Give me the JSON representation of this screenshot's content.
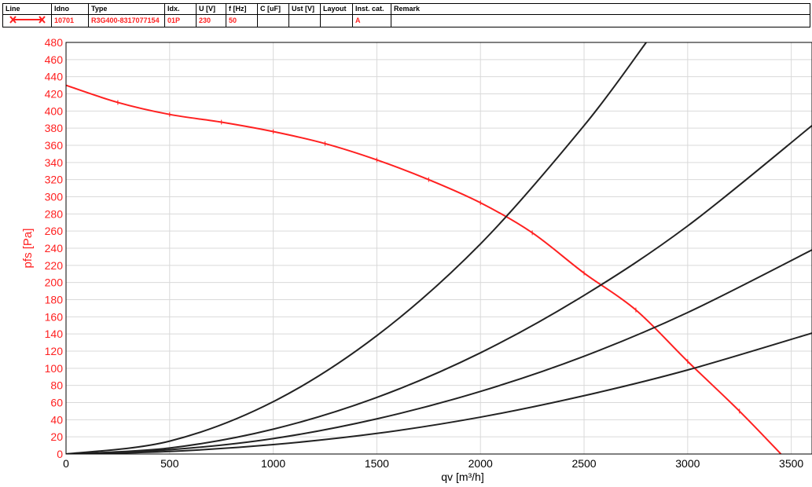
{
  "legend_table": {
    "headers": [
      "Line",
      "Idno",
      "Type",
      "Idx.",
      "U [V]",
      "f [Hz]",
      "C [uF]",
      "Ust [V]",
      "Layout",
      "Inst. cat.",
      "Remark"
    ],
    "row": {
      "idno": "10701",
      "type": "R3G400-8317077154",
      "idx": "01P",
      "u": "230",
      "f": "50",
      "c": "",
      "ust": "",
      "layout": "",
      "inst_cat": "A",
      "remark": ""
    }
  },
  "colors": {
    "fan_curve": "#ff2020",
    "system_curves": "#222222",
    "grid": "#d9d9d9",
    "axis_text_y": "#ff2020",
    "axis_text_x": "#000000"
  },
  "chart_data": {
    "type": "line",
    "xlabel": "qv [m³/h]",
    "ylabel": "pfs [Pa]",
    "xlim": [
      0,
      3600
    ],
    "ylim": [
      0,
      480
    ],
    "xticks": [
      0,
      500,
      1000,
      1500,
      2000,
      2500,
      3000,
      3500
    ],
    "yticks": [
      0,
      20,
      40,
      60,
      80,
      100,
      120,
      140,
      160,
      180,
      200,
      220,
      240,
      260,
      280,
      300,
      320,
      340,
      360,
      380,
      400,
      420,
      440,
      460,
      480
    ],
    "grid": true,
    "series": [
      {
        "role": "fan-curve",
        "x": [
          0,
          250,
          500,
          750,
          1000,
          1250,
          1500,
          1750,
          2000,
          2250,
          2500,
          2750,
          3000,
          3250,
          3450
        ],
        "y": [
          430,
          410,
          396,
          387,
          376,
          362,
          343,
          320,
          293,
          258,
          211,
          168,
          108,
          50,
          0
        ]
      },
      {
        "role": "system-curve",
        "x": [
          0,
          500,
          1000,
          1500,
          2000,
          2500,
          2800
        ],
        "y": [
          0,
          15,
          61,
          138,
          245,
          383,
          480
        ]
      },
      {
        "role": "system-curve",
        "x": [
          0,
          500,
          1000,
          1500,
          2000,
          2500,
          3000,
          3600
        ],
        "y": [
          0,
          7,
          29,
          66,
          118,
          185,
          266,
          383
        ]
      },
      {
        "role": "system-curve",
        "x": [
          0,
          500,
          1000,
          1500,
          2000,
          2500,
          3000,
          3600
        ],
        "y": [
          0,
          5,
          18,
          41,
          73,
          114,
          165,
          238
        ]
      },
      {
        "role": "system-curve",
        "x": [
          0,
          500,
          1000,
          1500,
          2000,
          2500,
          3000,
          3600
        ],
        "y": [
          0,
          3,
          11,
          24,
          43,
          68,
          98,
          141
        ]
      }
    ]
  }
}
